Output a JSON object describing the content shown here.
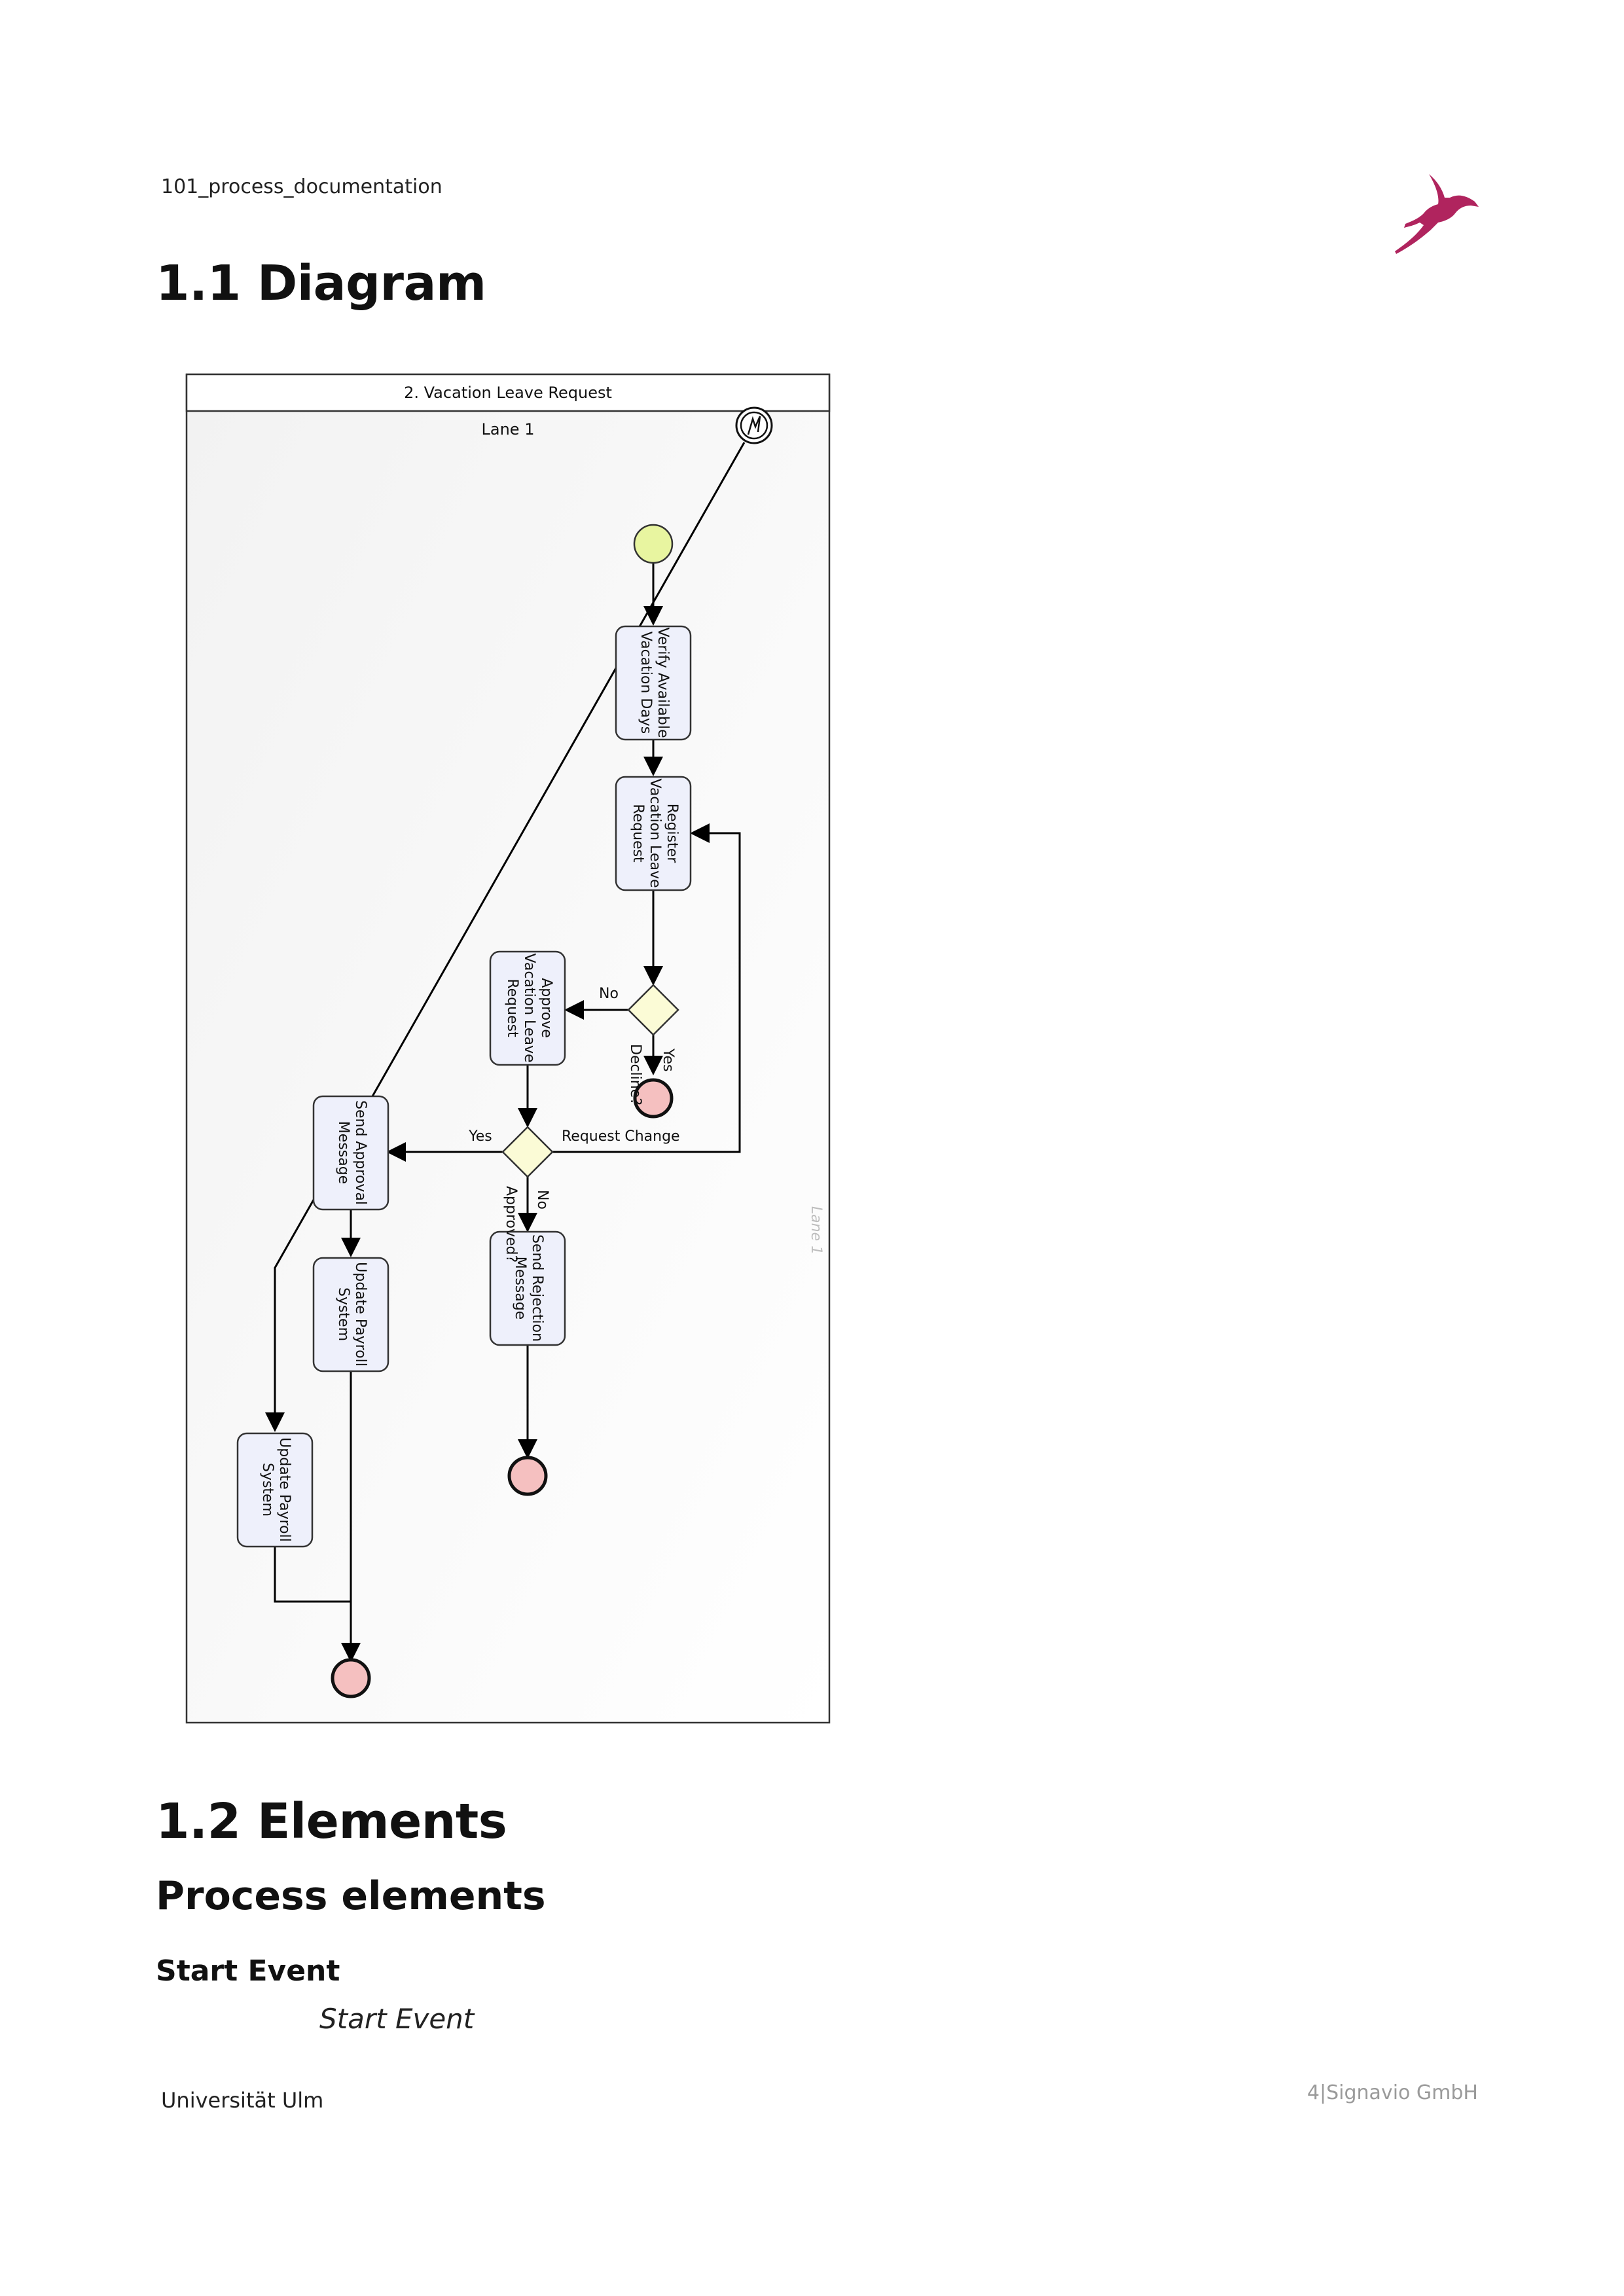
{
  "header": {
    "doc_id": "101_process_documentation",
    "logo_icon": "gazelle-logo-icon"
  },
  "sections": {
    "diagram_title": "1.1 Diagram",
    "elements_title": "1.2 Elements",
    "process_elements_title": "Process elements",
    "start_event_heading": "Start Event",
    "start_event_label": "Start Event"
  },
  "diagram": {
    "pool_title": "2. Vacation Leave Request",
    "lane_title": "Lane 1",
    "lane_side_label": "Lane 1",
    "tasks": {
      "verify": [
        "Verify Available",
        "Vacation Days"
      ],
      "register": [
        "Register",
        "Vacation Leave",
        "Request"
      ],
      "approve": [
        "Approve",
        "Vacation Leave",
        "Request"
      ],
      "send_approval": [
        "Send Approval",
        "Message"
      ],
      "update_payroll_1": [
        "Update Payroll",
        "System"
      ],
      "send_rejection": [
        "Send Rejection",
        "Message"
      ],
      "update_payroll_2": [
        "Update Payroll",
        "System"
      ]
    },
    "gateways": {
      "decline": "Decline?",
      "approved": "Approved?"
    },
    "flow_labels": {
      "decline_no": "No",
      "decline_yes": "Yes",
      "approved_yes": "Yes",
      "approved_no": "No",
      "request_change": "Request Change"
    },
    "colors": {
      "start_event": "#e8f5a0",
      "end_event": "#f5c0c0",
      "task_fill": "#eef0fb",
      "gateway_fill": "#fbfbd6",
      "logo": "#b0245e"
    }
  },
  "footer": {
    "left": "Universität Ulm",
    "right": "4|Signavio GmbH"
  }
}
